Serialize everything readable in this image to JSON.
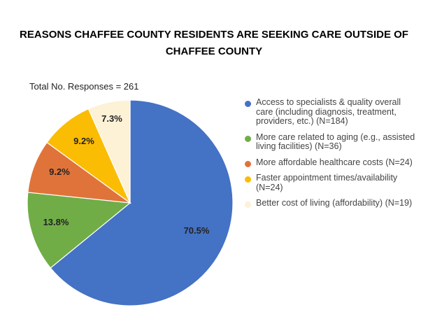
{
  "chart_data": {
    "type": "pie",
    "title": "REASONS CHAFFEE COUNTY RESIDENTS ARE SEEKING CARE OUTSIDE OF CHAFFEE COUNTY",
    "subtitle": "Total No. Responses = 261",
    "legend_position": "right",
    "slices": [
      {
        "name": "Access to specialists & quality overall care (including diagnosis, treatment, providers, etc.) (N=184)",
        "value": 70.5,
        "label": "70.5%",
        "color": "#4472C4"
      },
      {
        "name": "More care related to aging (e.g., assisted living facilities) (N=36)",
        "value": 13.8,
        "label": "13.8%",
        "color": "#70AD47"
      },
      {
        "name": "More affordable healthcare costs (N=24)",
        "value": 9.2,
        "label": "9.2%",
        "color": "#E0733A"
      },
      {
        "name": "Faster appointment times/availability (N=24)",
        "value": 9.2,
        "label": "9.2%",
        "color": "#FBBC04"
      },
      {
        "name": "Better cost of living (affordability) (N=19)",
        "value": 7.3,
        "label": "7.3%",
        "color": "#FDF1D6"
      }
    ]
  }
}
